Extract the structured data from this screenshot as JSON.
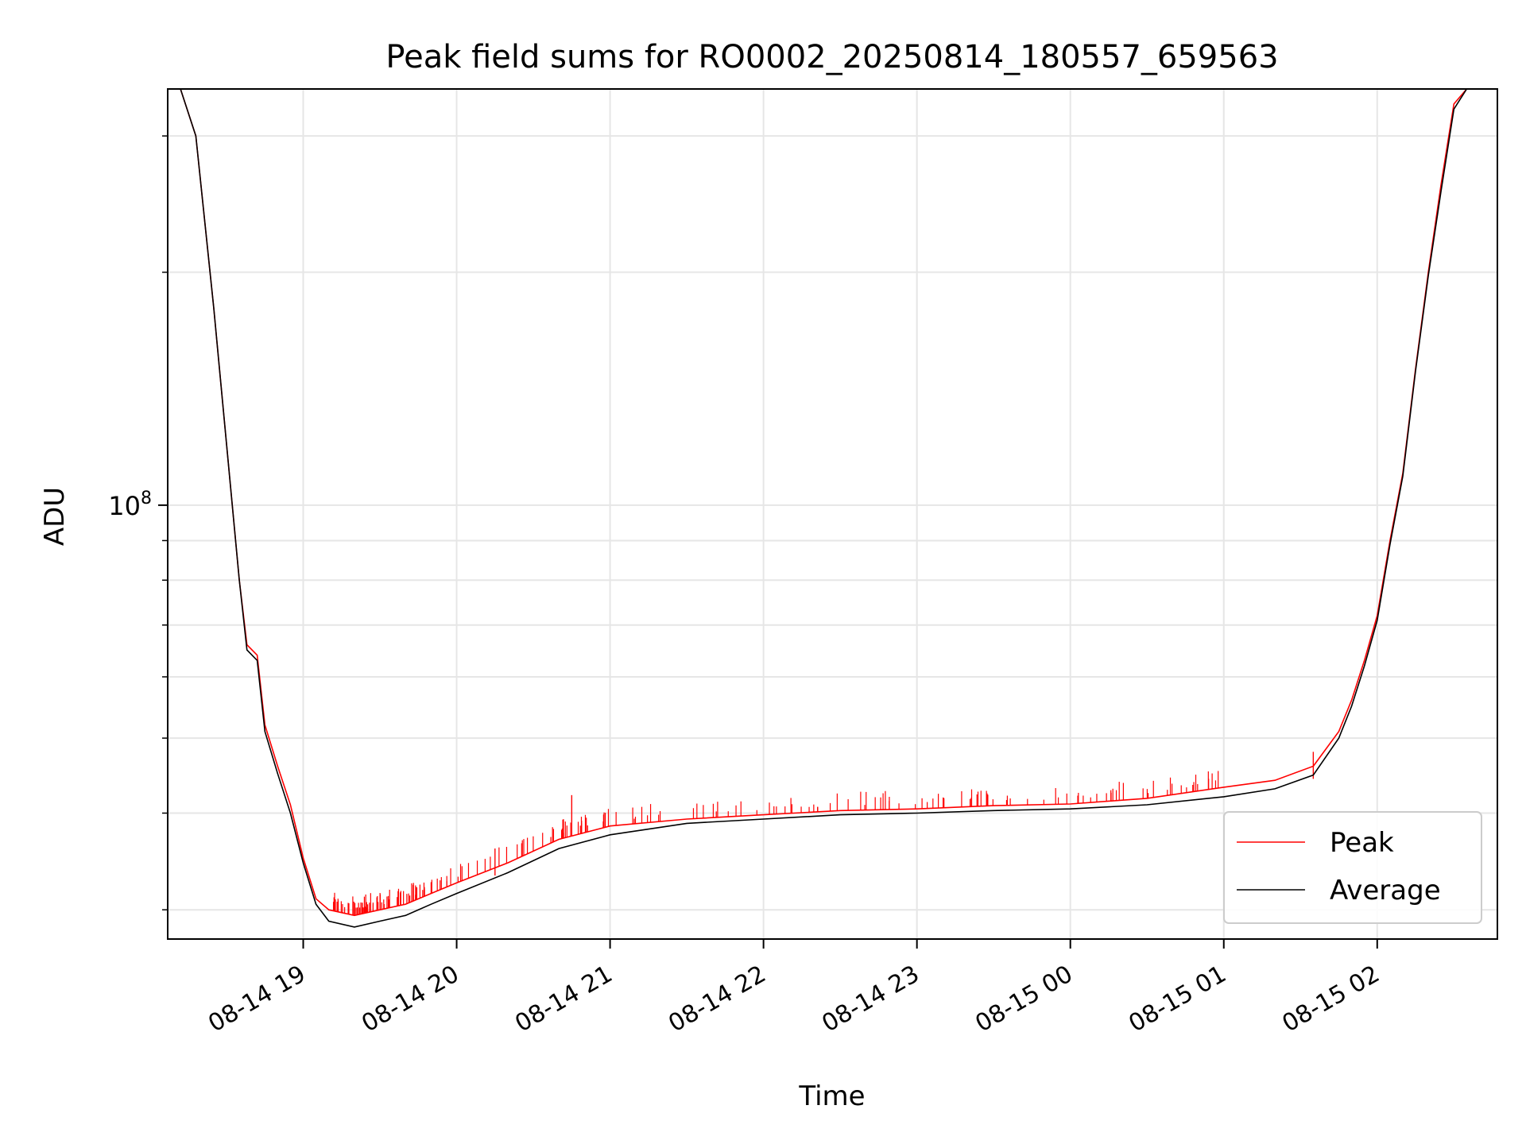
{
  "chart_data": {
    "type": "line",
    "title": "Peak field sums for RO0002_20250814_180557_659563",
    "xlabel": "Time",
    "ylabel": "ADU",
    "x_ticks": [
      "08-14 19",
      "08-14 20",
      "08-14 21",
      "08-14 22",
      "08-14 23",
      "08-15 00",
      "08-15 01",
      "08-15 02"
    ],
    "y_ticks": [
      {
        "value": 100000000,
        "base": "10",
        "exp": "8"
      }
    ],
    "y_scale": "log",
    "xlim": [
      "2025-08-14 18:07",
      "2025-08-15 02:47"
    ],
    "ylim": [
      27500000,
      345000000
    ],
    "grid": true,
    "legend": {
      "position": "lower-right",
      "entries": [
        "Peak",
        "Average"
      ]
    },
    "colors": {
      "Peak": "#ff0000",
      "Average": "#000000"
    },
    "series": [
      {
        "name": "Peak",
        "x": [
          "2025-08-14 18:12",
          "2025-08-14 18:18",
          "2025-08-14 18:25",
          "2025-08-14 18:30",
          "2025-08-14 18:35",
          "2025-08-14 18:38",
          "2025-08-14 18:42",
          "2025-08-14 18:45",
          "2025-08-14 18:50",
          "2025-08-14 18:55",
          "2025-08-14 19:00",
          "2025-08-14 19:05",
          "2025-08-14 19:10",
          "2025-08-14 19:20",
          "2025-08-14 19:30",
          "2025-08-14 19:40",
          "2025-08-14 19:50",
          "2025-08-14 20:00",
          "2025-08-14 20:20",
          "2025-08-14 20:40",
          "2025-08-14 21:00",
          "2025-08-14 21:30",
          "2025-08-14 22:00",
          "2025-08-14 22:30",
          "2025-08-14 23:00",
          "2025-08-14 23:30",
          "2025-08-15 00:00",
          "2025-08-15 00:30",
          "2025-08-15 01:00",
          "2025-08-15 01:20",
          "2025-08-15 01:35",
          "2025-08-15 01:45",
          "2025-08-15 01:50",
          "2025-08-15 01:55",
          "2025-08-15 02:00",
          "2025-08-15 02:05",
          "2025-08-15 02:10",
          "2025-08-15 02:15",
          "2025-08-15 02:20",
          "2025-08-15 02:25",
          "2025-08-15 02:30",
          "2025-08-15 02:35",
          "2025-08-15 02:40",
          "2025-08-15 02:47"
        ],
        "y": [
          345000000,
          300000000,
          180000000,
          120000000,
          80000000,
          66000000,
          64000000,
          52000000,
          46000000,
          41000000,
          35000000,
          31000000,
          30000000,
          29500000,
          30000000,
          30500000,
          31500000,
          32500000,
          34500000,
          37000000,
          38500000,
          39300000,
          39800000,
          40300000,
          40500000,
          40900000,
          41100000,
          41800000,
          43200000,
          44100000,
          46000000,
          51000000,
          56000000,
          63000000,
          72000000,
          90000000,
          110000000,
          150000000,
          200000000,
          260000000,
          330000000,
          345000000,
          345000000,
          345000000
        ],
        "spikes": [
          {
            "x": "2025-08-14 20:45",
            "y": 42200000
          },
          {
            "x": "2025-08-14 20:15",
            "y": 36000000
          },
          {
            "x": "2025-08-15 01:35",
            "y": 48000000
          }
        ]
      },
      {
        "name": "Average",
        "x": [
          "2025-08-14 18:12",
          "2025-08-14 18:18",
          "2025-08-14 18:25",
          "2025-08-14 18:30",
          "2025-08-14 18:35",
          "2025-08-14 18:38",
          "2025-08-14 18:42",
          "2025-08-14 18:45",
          "2025-08-14 18:50",
          "2025-08-14 18:55",
          "2025-08-14 19:00",
          "2025-08-14 19:05",
          "2025-08-14 19:10",
          "2025-08-14 19:20",
          "2025-08-14 19:30",
          "2025-08-14 19:40",
          "2025-08-14 19:50",
          "2025-08-14 20:00",
          "2025-08-14 20:20",
          "2025-08-14 20:40",
          "2025-08-14 21:00",
          "2025-08-14 21:30",
          "2025-08-14 22:00",
          "2025-08-14 22:30",
          "2025-08-14 23:00",
          "2025-08-14 23:30",
          "2025-08-15 00:00",
          "2025-08-15 00:30",
          "2025-08-15 01:00",
          "2025-08-15 01:20",
          "2025-08-15 01:35",
          "2025-08-15 01:45",
          "2025-08-15 01:50",
          "2025-08-15 01:55",
          "2025-08-15 02:00",
          "2025-08-15 02:05",
          "2025-08-15 02:10",
          "2025-08-15 02:15",
          "2025-08-15 02:20",
          "2025-08-15 02:25",
          "2025-08-15 02:30",
          "2025-08-15 02:35",
          "2025-08-15 02:40",
          "2025-08-15 02:47"
        ],
        "y": [
          345000000,
          300000000,
          180000000,
          120000000,
          80000000,
          65000000,
          63000000,
          51000000,
          45000000,
          40000000,
          34500000,
          30500000,
          29000000,
          28500000,
          29000000,
          29500000,
          30500000,
          31500000,
          33500000,
          36000000,
          37500000,
          38800000,
          39300000,
          39800000,
          40000000,
          40300000,
          40500000,
          41000000,
          42000000,
          43000000,
          44800000,
          50000000,
          55000000,
          62000000,
          71000000,
          89000000,
          109000000,
          149000000,
          198000000,
          255000000,
          325000000,
          345000000,
          345000000,
          345000000
        ]
      }
    ]
  }
}
